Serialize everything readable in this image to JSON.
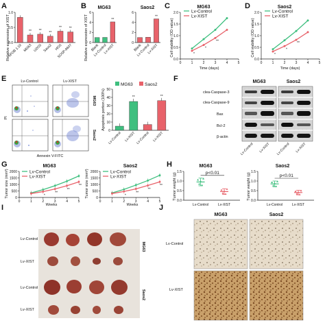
{
  "panels": {
    "A": {
      "label": "A",
      "ylabel": "Relative expression of XIST",
      "categories": [
        "hFOB 1.19",
        "MG63",
        "U2OS",
        "Saos2",
        "HOS",
        "SOSP-9607"
      ],
      "values": [
        1.0,
        0.3,
        0.33,
        0.25,
        0.45,
        0.42
      ],
      "sig": [
        "",
        "**",
        "**",
        "**",
        "**",
        "**"
      ],
      "yticks": [
        "0.0",
        "0.5",
        "1.0"
      ],
      "ylim": [
        0,
        1.2
      ],
      "color": "#e8626a"
    },
    "B": {
      "label": "B",
      "ylabel": "Relative expression of XIST",
      "groups": [
        {
          "title": "MG63",
          "categories": [
            "Blank",
            "Lv-Control",
            "Lv-XIST"
          ],
          "values": [
            1.0,
            1.02,
            4.1
          ],
          "sig": [
            "",
            "",
            "**"
          ],
          "colors": [
            "#3fbf7f",
            "#3fbf7f",
            "#e8626a"
          ]
        },
        {
          "title": "Saos2",
          "categories": [
            "Blank",
            "Lv-Control",
            "Lv-XIST"
          ],
          "values": [
            1.0,
            1.05,
            4.7
          ],
          "sig": [
            "",
            "",
            "**"
          ],
          "colors": [
            "#e8626a",
            "#e8626a",
            "#e8626a"
          ]
        }
      ],
      "yticks": [
        "0",
        "2",
        "4",
        "6"
      ],
      "ylim": [
        0,
        6
      ]
    },
    "C": {
      "label": "C",
      "title": "MG63",
      "xlabel": "Time (days)",
      "ylabel": "Cell viability (OD value)",
      "x": [
        1,
        2,
        3,
        4
      ],
      "xticks": [
        "0",
        "1",
        "2",
        "3",
        "4",
        "5"
      ],
      "yticks": [
        "0.0",
        "0.5",
        "1.0",
        "1.5",
        "2.0"
      ],
      "ylim": [
        0,
        2.0
      ],
      "series": [
        {
          "name": "Lv-Control",
          "values": [
            0.45,
            0.85,
            1.25,
            1.75
          ],
          "color": "#3fbf7f"
        },
        {
          "name": "Lv-XIST",
          "values": [
            0.35,
            0.6,
            0.9,
            1.25
          ],
          "color": "#e8626a"
        }
      ],
      "sig": [
        "*",
        "*",
        "**"
      ]
    },
    "D": {
      "label": "D",
      "title": "Saos2",
      "xlabel": "Time (days)",
      "ylabel": "Cell viability (OD value)",
      "x": [
        1,
        2,
        3,
        4
      ],
      "xticks": [
        "0",
        "1",
        "2",
        "3",
        "4",
        "5"
      ],
      "yticks": [
        "0.0",
        "0.5",
        "1.0",
        "1.5",
        "2.0"
      ],
      "ylim": [
        0,
        2.0
      ],
      "series": [
        {
          "name": "Lv-Control",
          "values": [
            0.42,
            0.8,
            1.2,
            1.65
          ],
          "color": "#3fbf7f"
        },
        {
          "name": "Lv-XIST",
          "values": [
            0.32,
            0.55,
            0.82,
            1.15
          ],
          "color": "#e8626a"
        }
      ],
      "sig": [
        "*",
        "*",
        "**"
      ]
    },
    "E": {
      "label": "E",
      "flow_cols": [
        "Lv-Control",
        "Lv-XIST"
      ],
      "flow_rows": [
        "MG63",
        "Saos2"
      ],
      "flow_xlabel": "Annexin V-FITC",
      "flow_ylabel": "PI",
      "bar_ylabel": "Apoptosis portion (100%)",
      "legend": [
        {
          "name": "MG63",
          "color": "#3fbf7f"
        },
        {
          "name": "Saos2",
          "color": "#e8626a"
        }
      ],
      "categories": [
        "Lv-Control",
        "Lv-XIST",
        "Lv-Control",
        "Lv-XIST"
      ],
      "values": [
        5,
        35,
        7,
        36
      ],
      "bar_colors": [
        "#3fbf7f",
        "#3fbf7f",
        "#e8626a",
        "#e8626a"
      ],
      "sig": [
        "",
        "**",
        "",
        "**"
      ],
      "yticks": [
        "0",
        "10",
        "20",
        "30",
        "40",
        "50"
      ],
      "ylim": [
        0,
        50
      ]
    },
    "F": {
      "label": "F",
      "cols": [
        "MG63",
        "Saos2"
      ],
      "rows": [
        "clea-Caspase-3",
        "clea-Caspase-9",
        "Bax",
        "Bcl-2",
        "β-actin"
      ],
      "lanes": [
        "Lv-Control",
        "Lv-XIST",
        "Lv-Control",
        "Lv-XIST"
      ]
    },
    "G": {
      "label": "G",
      "xlabel": "Weeks",
      "ylabel": "Tumor size (mm³)",
      "x": [
        1,
        2,
        3,
        4,
        5
      ],
      "xticks": [
        "0",
        "1",
        "2",
        "3",
        "4",
        "5"
      ],
      "yticks": [
        "0",
        "500",
        "1000",
        "1500",
        "2000"
      ],
      "ylim": [
        0,
        2000
      ],
      "charts": [
        {
          "title": "MG63",
          "series": [
            {
              "name": "Lv-Control",
              "values": [
                350,
                600,
                900,
                1250,
                1650
              ],
              "color": "#3fbf7f"
            },
            {
              "name": "Lv-XIST",
              "values": [
                300,
                450,
                650,
                900,
                1200
              ],
              "color": "#e8626a"
            }
          ],
          "sig": [
            "",
            "*",
            "**",
            "**",
            "**"
          ]
        },
        {
          "title": "Saos2",
          "series": [
            {
              "name": "Lv-Control",
              "values": [
                350,
                620,
                950,
                1300,
                1700
              ],
              "color": "#3fbf7f"
            },
            {
              "name": "Lv-XIST",
              "values": [
                300,
                460,
                660,
                920,
                1200
              ],
              "color": "#e8626a"
            }
          ],
          "sig": [
            "",
            "*",
            "**",
            "**",
            "**"
          ]
        }
      ]
    },
    "H": {
      "label": "H",
      "ylabel": "Tumor weight (g)",
      "yticks": [
        "0.0",
        "0.5",
        "1.0",
        "1.5"
      ],
      "ylim": [
        0,
        1.5
      ],
      "categories": [
        "Lv-Control",
        "Lv-XIST"
      ],
      "charts": [
        {
          "title": "MG63",
          "pval": "p<0.01",
          "means": [
            0.95,
            0.45
          ],
          "sd": [
            0.2,
            0.15
          ],
          "colors": [
            "#3fbf7f",
            "#e8626a"
          ]
        },
        {
          "title": "Saos2",
          "pval": "p<0.01",
          "means": [
            0.85,
            0.4
          ],
          "sd": [
            0.15,
            0.12
          ],
          "colors": [
            "#3fbf7f",
            "#e8626a"
          ]
        }
      ]
    },
    "I": {
      "label": "I",
      "rows": [
        "Lv-Control",
        "Lv-XIST",
        "Lv-Control",
        "Lv-XIST"
      ],
      "groups": [
        "MG63",
        "Saos2"
      ]
    },
    "J": {
      "label": "J",
      "cols": [
        "MG63",
        "Saos2"
      ],
      "rows": [
        "Lv-Control",
        "Lv-XIST"
      ]
    }
  }
}
